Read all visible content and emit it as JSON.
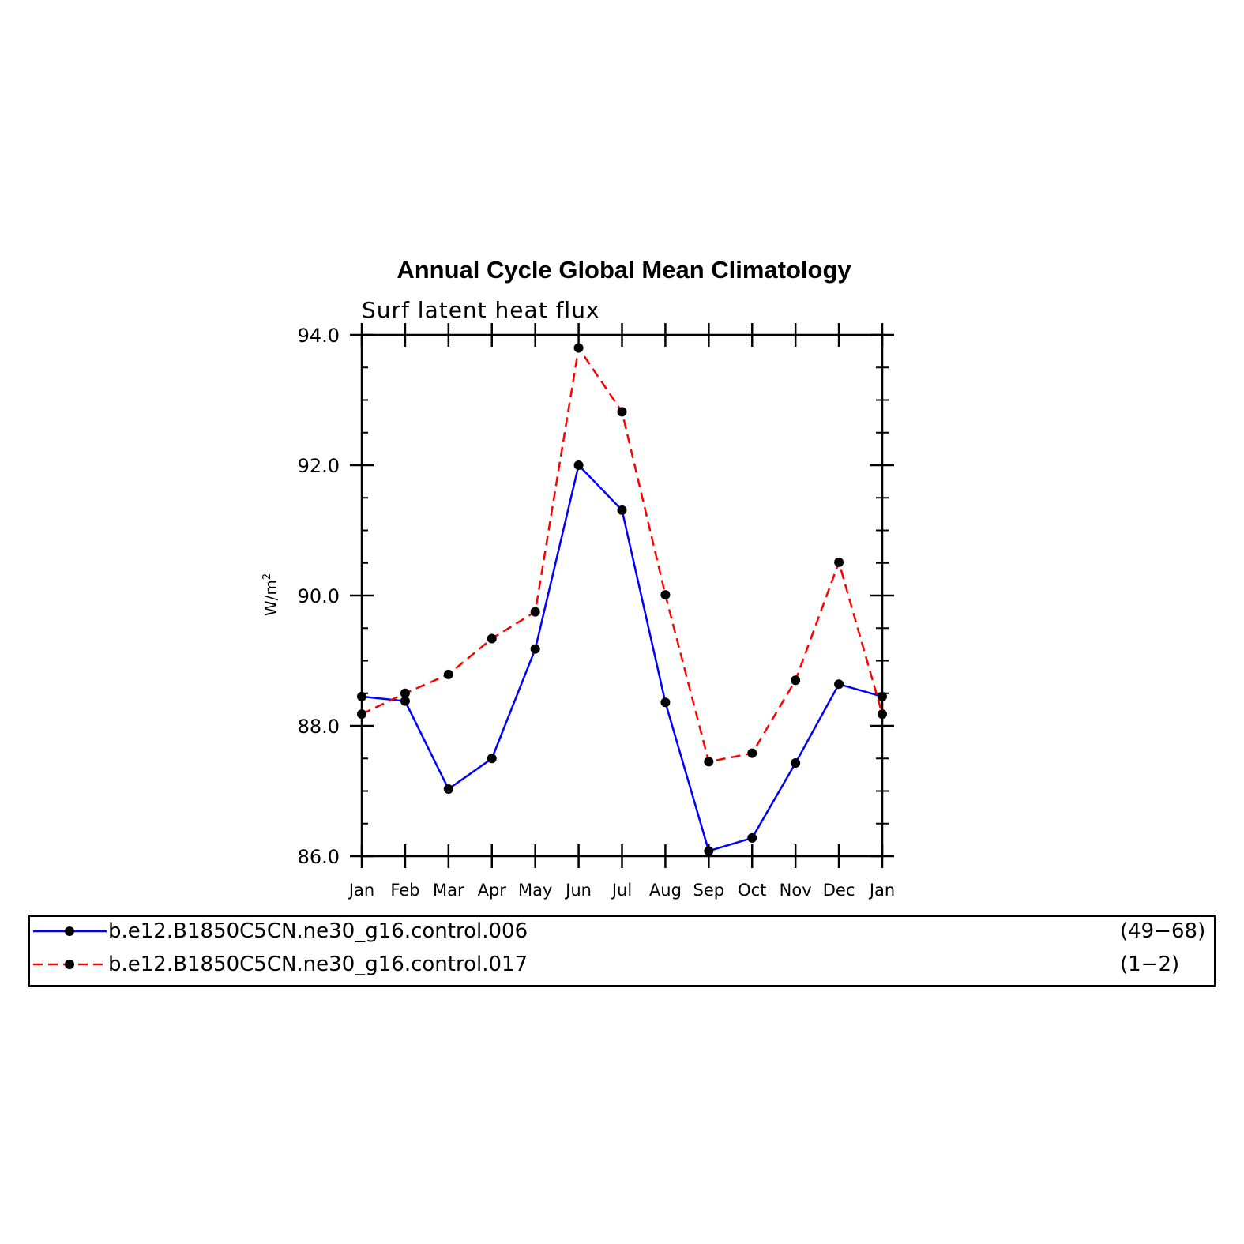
{
  "chart_data": {
    "type": "line",
    "title": "Annual Cycle Global Mean Climatology",
    "subtitle": "Surf latent heat flux",
    "ylabel_base": "W/m",
    "ylabel_sup": "2",
    "categories": [
      "Jan",
      "Feb",
      "Mar",
      "Apr",
      "May",
      "Jun",
      "Jul",
      "Aug",
      "Sep",
      "Oct",
      "Nov",
      "Dec",
      "Jan"
    ],
    "ylim": [
      86.0,
      94.0
    ],
    "yticks": [
      "86.0",
      "88.0",
      "90.0",
      "92.0",
      "94.0"
    ],
    "series": [
      {
        "name": "b.e12.B1850C5CN.ne30_g16.control.006",
        "years": "(49−68)",
        "color": "#0000ff",
        "dash": "solid",
        "values": [
          88.45,
          88.38,
          87.03,
          87.5,
          89.18,
          92.0,
          91.31,
          88.36,
          86.08,
          86.28,
          87.43,
          88.64,
          88.45
        ]
      },
      {
        "name": "b.e12.B1850C5CN.ne30_g16.control.017",
        "years": "(1−2)",
        "color": "#ff0000",
        "dash": "dashed",
        "values": [
          88.18,
          88.5,
          88.79,
          89.34,
          89.75,
          93.8,
          92.82,
          90.01,
          87.45,
          87.58,
          88.7,
          90.51,
          88.18
        ]
      }
    ],
    "marker_color": "#000000",
    "grid": false,
    "legend_position": "bottom"
  }
}
